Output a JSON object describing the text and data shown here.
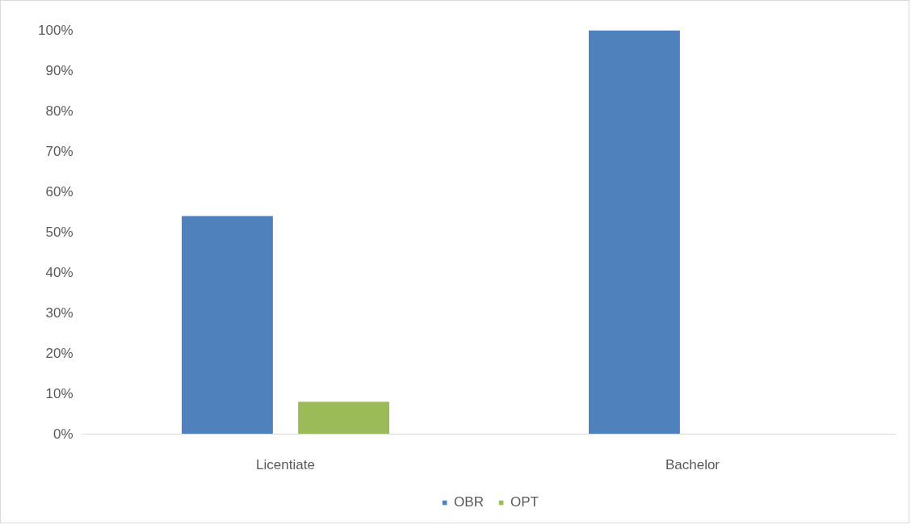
{
  "chart_data": {
    "type": "bar",
    "categories": [
      "Licentiate",
      "Bachelor"
    ],
    "series": [
      {
        "name": "OBR",
        "color": "#4f81bd",
        "values": [
          54,
          100
        ]
      },
      {
        "name": "OPT",
        "color": "#9bbb59",
        "values": [
          8,
          0
        ]
      }
    ],
    "ylim": [
      0,
      100
    ],
    "yticks": [
      {
        "value": 0,
        "label": "0%"
      },
      {
        "value": 10,
        "label": "10%"
      },
      {
        "value": 20,
        "label": "20%"
      },
      {
        "value": 30,
        "label": "30%"
      },
      {
        "value": 40,
        "label": "40%"
      },
      {
        "value": 50,
        "label": "50%"
      },
      {
        "value": 60,
        "label": "60%"
      },
      {
        "value": 70,
        "label": "70%"
      },
      {
        "value": 80,
        "label": "80%"
      },
      {
        "value": 90,
        "label": "90%"
      },
      {
        "value": 100,
        "label": "100%"
      }
    ],
    "grid": false,
    "legend": "bottom"
  }
}
